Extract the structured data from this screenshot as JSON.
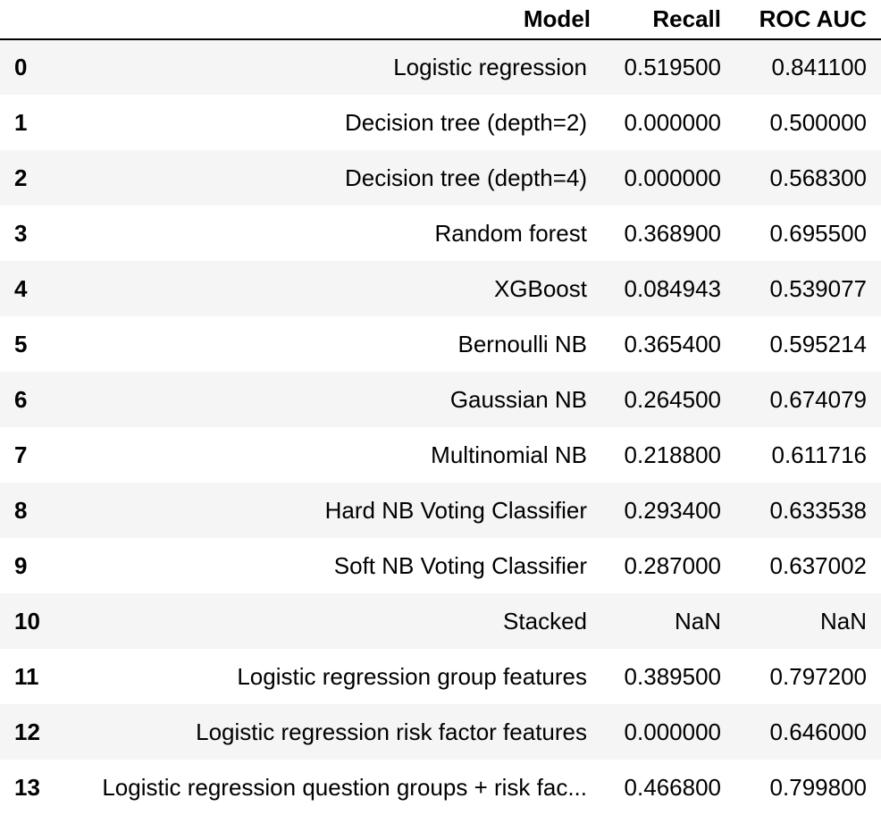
{
  "table": {
    "columns": {
      "index": "",
      "model": "Model",
      "recall": "Recall",
      "roc_auc": "ROC AUC"
    },
    "rows": [
      {
        "index": "0",
        "model": "Logistic regression",
        "recall": "0.519500",
        "roc_auc": "0.841100"
      },
      {
        "index": "1",
        "model": "Decision tree (depth=2)",
        "recall": "0.000000",
        "roc_auc": "0.500000"
      },
      {
        "index": "2",
        "model": "Decision tree (depth=4)",
        "recall": "0.000000",
        "roc_auc": "0.568300"
      },
      {
        "index": "3",
        "model": "Random forest",
        "recall": "0.368900",
        "roc_auc": "0.695500"
      },
      {
        "index": "4",
        "model": "XGBoost",
        "recall": "0.084943",
        "roc_auc": "0.539077"
      },
      {
        "index": "5",
        "model": "Bernoulli NB",
        "recall": "0.365400",
        "roc_auc": "0.595214"
      },
      {
        "index": "6",
        "model": "Gaussian NB",
        "recall": "0.264500",
        "roc_auc": "0.674079"
      },
      {
        "index": "7",
        "model": "Multinomial NB",
        "recall": "0.218800",
        "roc_auc": "0.611716"
      },
      {
        "index": "8",
        "model": "Hard NB Voting Classifier",
        "recall": "0.293400",
        "roc_auc": "0.633538"
      },
      {
        "index": "9",
        "model": "Soft NB Voting Classifier",
        "recall": "0.287000",
        "roc_auc": "0.637002"
      },
      {
        "index": "10",
        "model": "Stacked",
        "recall": "NaN",
        "roc_auc": "NaN"
      },
      {
        "index": "11",
        "model": "Logistic regression group features",
        "recall": "0.389500",
        "roc_auc": "0.797200"
      },
      {
        "index": "12",
        "model": "Logistic regression risk factor features",
        "recall": "0.000000",
        "roc_auc": "0.646000"
      },
      {
        "index": "13",
        "model": "Logistic regression question groups + risk fac...",
        "recall": "0.466800",
        "roc_auc": "0.799800"
      }
    ]
  }
}
